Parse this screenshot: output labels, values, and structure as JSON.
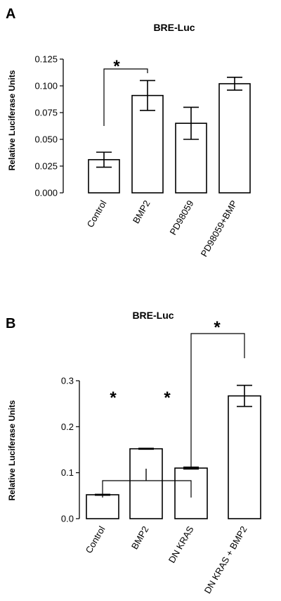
{
  "chart_data": [
    {
      "type": "bar",
      "panel_label": "A",
      "title": "BRE-Luc",
      "xlabel": "",
      "ylabel": "Relative Luciferase Units",
      "categories": [
        "Control",
        "BMP2",
        "PD98059",
        "PD98059+BMP"
      ],
      "values": [
        0.031,
        0.091,
        0.065,
        0.102
      ],
      "errors": [
        0.007,
        0.014,
        0.015,
        0.006
      ],
      "ylim": [
        0,
        0.125
      ],
      "yticks": [
        "0.000",
        "0.025",
        "0.050",
        "0.075",
        "0.100",
        "0.125"
      ],
      "annotations": [
        {
          "text": "*",
          "groups": [
            [
              0
            ],
            [
              1
            ]
          ]
        }
      ]
    },
    {
      "type": "bar",
      "panel_label": "B",
      "title": "BRE-Luc",
      "xlabel": "",
      "ylabel": "Relative Luciferase Units",
      "categories": [
        "Control",
        "BMP2",
        "DN KRAS",
        "DN KRAS + BMP2"
      ],
      "values": [
        0.052,
        0.152,
        0.11,
        0.267
      ],
      "errors": [
        0.001,
        0.001,
        0.002,
        0.023
      ],
      "ylim": [
        0,
        0.3
      ],
      "yticks": [
        "0.0",
        "0.1",
        "0.2",
        "0.3"
      ],
      "annotations": [
        {
          "text": "*",
          "groups": [
            [
              0
            ],
            [
              1
            ]
          ]
        },
        {
          "text": "*",
          "groups": [
            [
              1
            ],
            [
              2
            ]
          ]
        },
        {
          "text": "*",
          "groups": [
            [
              2
            ],
            [
              3
            ]
          ]
        }
      ]
    }
  ]
}
